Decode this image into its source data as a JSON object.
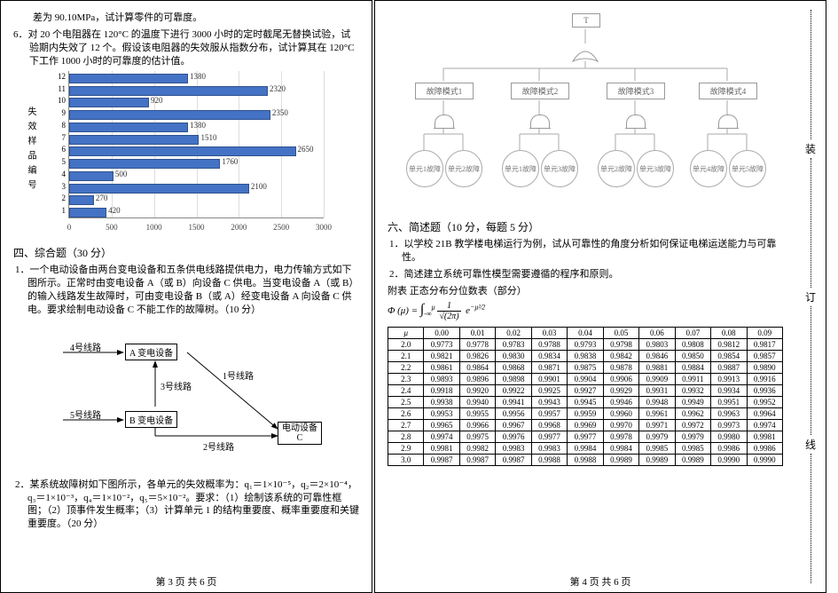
{
  "page_left": {
    "intro_line": "差为 90.10MPa，试计算零件的可靠度。",
    "q6": "6．对 20 个电阻器在 120°C 的温度下进行 3000 小时的定时截尾无替换试验，试验期内失效了 12 个。假设该电阻器的失效服从指数分布，试计算其在 120°C 下工作 1000 小时的可靠度的估计值。",
    "barchart": {
      "type": "bar-horizontal",
      "xlim": [
        0,
        3000
      ],
      "xtick_step": 500,
      "xticks": [
        0,
        500,
        1000,
        1500,
        2000,
        2500,
        3000
      ],
      "ytitle": "失 效 样 品 编 号",
      "ylabels": [
        "12",
        "11",
        "10",
        "9",
        "8",
        "7",
        "6",
        "5",
        "4",
        "3",
        "2",
        "1"
      ],
      "values": [
        1380,
        2320,
        920,
        2350,
        1380,
        1510,
        2650,
        1760,
        500,
        2100,
        270,
        420
      ],
      "bar_color": "#4472c4",
      "bar_border": "#2f528f",
      "grid_color": "#dddddd",
      "tick_font": 9
    },
    "sec4_title": "四、综合题（30 分）",
    "sec4_q1": "1．一个电动设备由两台变电设备和五条供电线路提供电力，电力传输方式如下图所示。正常时由变电设备 A（或 B）向设备 C 供电。当变电设备 A（或 B）的输入线路发生故障时，可由变电设备 B（或 A）经变电设备 A 向设备 C 供电。要求绘制电动设备 C 不能工作的故障树。（10 分）",
    "circuit": {
      "nodeA": "A 变电设备",
      "nodeB": "B 变电设备",
      "nodeC": "电动设备\nC",
      "line1": "1号线路",
      "line2": "2号线路",
      "line3": "3号线路",
      "line4": "4号线路",
      "line5": "5号线路"
    },
    "sec4_q2": "2．某系统故障树如下图所示，各单元的失效概率为：q₁＝1×10⁻⁵，q₂＝2×10⁻⁴，q₃＝1×10⁻³，q₄＝1×10⁻²，q₅＝5×10⁻²。要求：（1）绘制该系统的可靠性框图；（2）顶事件发生概率；（3）计算单元 1 的结构重要度、概率重要度和关键重要度。（20 分）",
    "pagenum": "第 3 页  共 6 页"
  },
  "page_right": {
    "fault_tree": {
      "top": "T",
      "modes": [
        "故障模式1",
        "故障模式2",
        "故障模式3",
        "故障模式4"
      ],
      "leaves": [
        "单元1故障",
        "单元2故障",
        "单元1故障",
        "单元3故障",
        "单元2故障",
        "单元3故障",
        "单元4故障",
        "单元5故障"
      ],
      "box_border": "#999999",
      "text_color": "#666666"
    },
    "sec6_title": "六、简述题（10 分，每题 5 分）",
    "sec6_q1": "1．以学校 21B 教学楼电梯运行为例，试从可靠性的角度分析如何保证电梯运送能力与可靠性。",
    "sec6_q2": "2．简述建立系统可靠性模型需要遵循的程序和原则。",
    "appendix_title": "附表  正态分布分位数表（部分）",
    "formula_label": "Φ (μ) =",
    "ztable": {
      "col_headers": [
        "μ",
        "0.00",
        "0.01",
        "0.02",
        "0.03",
        "0.04",
        "0.05",
        "0.06",
        "0.07",
        "0.08",
        "0.09"
      ],
      "rows": [
        [
          "2.0",
          "0.9773",
          "0.9778",
          "0.9783",
          "0.9788",
          "0.9793",
          "0.9798",
          "0.9803",
          "0.9808",
          "0.9812",
          "0.9817"
        ],
        [
          "2.1",
          "0.9821",
          "0.9826",
          "0.9830",
          "0.9834",
          "0.9838",
          "0.9842",
          "0.9846",
          "0.9850",
          "0.9854",
          "0.9857"
        ],
        [
          "2.2",
          "0.9861",
          "0.9864",
          "0.9868",
          "0.9871",
          "0.9875",
          "0.9878",
          "0.9881",
          "0.9884",
          "0.9887",
          "0.9890"
        ],
        [
          "2.3",
          "0.9893",
          "0.9896",
          "0.9898",
          "0.9901",
          "0.9904",
          "0.9906",
          "0.9909",
          "0.9911",
          "0.9913",
          "0.9916"
        ],
        [
          "2.4",
          "0.9918",
          "0.9920",
          "0.9922",
          "0.9925",
          "0.9927",
          "0.9929",
          "0.9931",
          "0.9932",
          "0.9934",
          "0.9936"
        ],
        [
          "2.5",
          "0.9938",
          "0.9940",
          "0.9941",
          "0.9943",
          "0.9945",
          "0.9946",
          "0.9948",
          "0.9949",
          "0.9951",
          "0.9952"
        ],
        [
          "2.6",
          "0.9953",
          "0.9955",
          "0.9956",
          "0.9957",
          "0.9959",
          "0.9960",
          "0.9961",
          "0.9962",
          "0.9963",
          "0.9964"
        ],
        [
          "2.7",
          "0.9965",
          "0.9966",
          "0.9967",
          "0.9968",
          "0.9969",
          "0.9970",
          "0.9971",
          "0.9972",
          "0.9973",
          "0.9974"
        ],
        [
          "2.8",
          "0.9974",
          "0.9975",
          "0.9976",
          "0.9977",
          "0.9977",
          "0.9978",
          "0.9979",
          "0.9979",
          "0.9980",
          "0.9981"
        ],
        [
          "2.9",
          "0.9981",
          "0.9982",
          "0.9983",
          "0.9983",
          "0.9984",
          "0.9984",
          "0.9985",
          "0.9985",
          "0.9986",
          "0.9986"
        ],
        [
          "3.0",
          "0.9987",
          "0.9987",
          "0.9987",
          "0.9988",
          "0.9988",
          "0.9989",
          "0.9989",
          "0.9989",
          "0.9990",
          "0.9990"
        ]
      ]
    },
    "binding": {
      "ch1": "装",
      "ch2": "订",
      "ch3": "线"
    },
    "pagenum": "第 4 页  共 6 页"
  }
}
